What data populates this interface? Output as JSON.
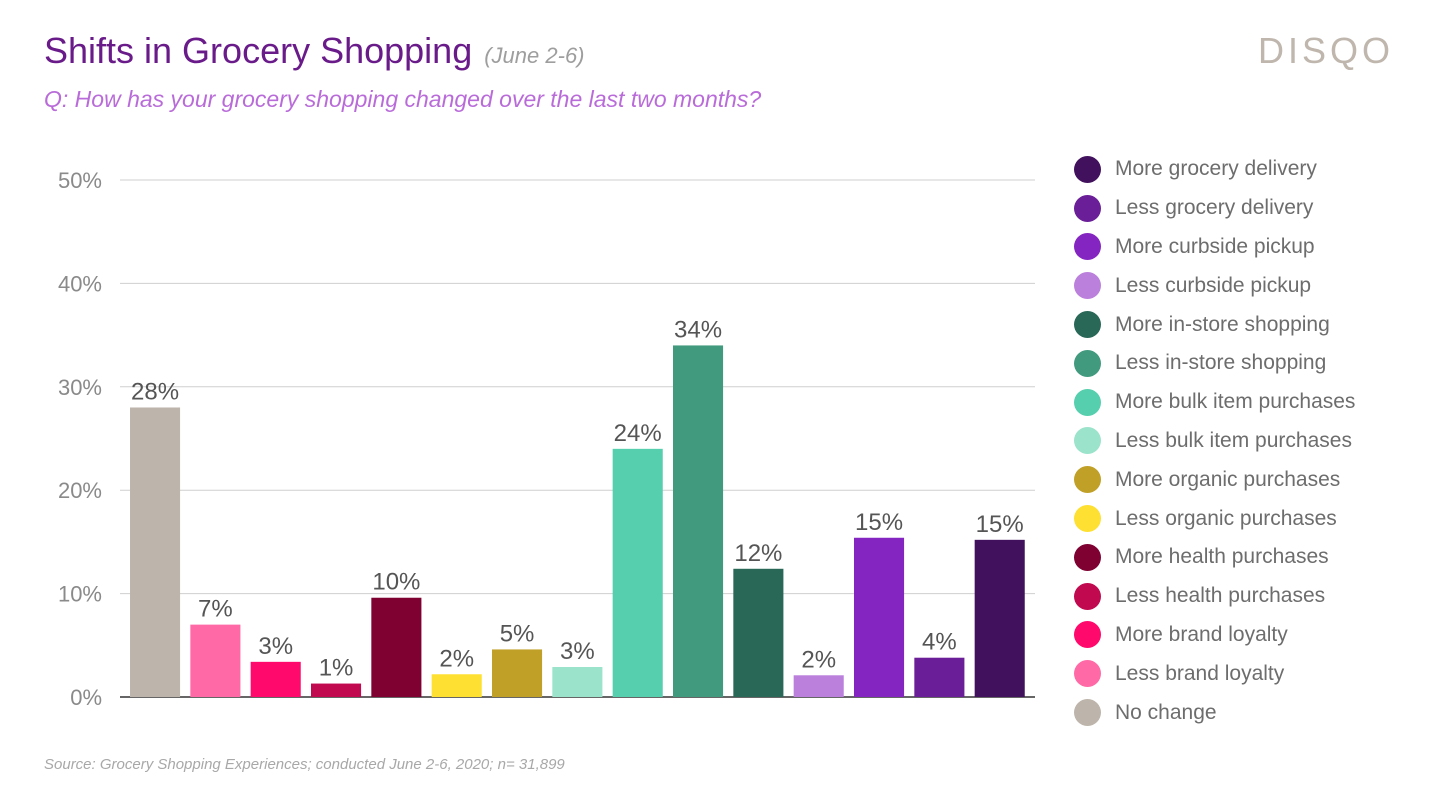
{
  "header": {
    "title": "Shifts in Grocery Shopping",
    "date": "(June 2-6)",
    "question": "Q: How has your grocery shopping changed over the last two months?",
    "logo": "DISQO"
  },
  "footer": {
    "source": "Source: Grocery Shopping Experiences; conducted June 2-6, 2020; n= 31,899"
  },
  "chart_data": {
    "type": "bar",
    "title": "Shifts in Grocery Shopping",
    "xlabel": "",
    "ylabel": "",
    "ylim": [
      0,
      50
    ],
    "yticks": [
      0,
      10,
      20,
      30,
      40,
      50
    ],
    "ytick_labels": [
      "0%",
      "10%",
      "20%",
      "30%",
      "40%",
      "50%"
    ],
    "grid": true,
    "legend_position": "right",
    "bars": [
      {
        "category": "No change",
        "value": 28,
        "label": "28%",
        "color": "#bdb4ab"
      },
      {
        "category": "Less brand loyalty",
        "value": 7,
        "label": "7%",
        "color": "#ff69a6"
      },
      {
        "category": "More brand loyalty",
        "value": 3.4,
        "label": "3%",
        "color": "#ff0a6c"
      },
      {
        "category": "Less health purchases",
        "value": 1.3,
        "label": "1%",
        "color": "#c0094f"
      },
      {
        "category": "More health purchases",
        "value": 9.6,
        "label": "10%",
        "color": "#7e0132"
      },
      {
        "category": "Less organic purchases",
        "value": 2.2,
        "label": "2%",
        "color": "#fde032"
      },
      {
        "category": "More organic purchases",
        "value": 4.6,
        "label": "5%",
        "color": "#c0a026"
      },
      {
        "category": "Less bulk item purchases",
        "value": 2.9,
        "label": "3%",
        "color": "#9be3cb"
      },
      {
        "category": "More bulk item purchases",
        "value": 24,
        "label": "24%",
        "color": "#55cfad"
      },
      {
        "category": "Less in-store shopping",
        "value": 34,
        "label": "34%",
        "color": "#419a7e"
      },
      {
        "category": "More in-store shopping",
        "value": 12.4,
        "label": "12%",
        "color": "#296757"
      },
      {
        "category": "Less curbside pickup",
        "value": 2.1,
        "label": "2%",
        "color": "#bb7fdc"
      },
      {
        "category": "More curbside pickup",
        "value": 15.4,
        "label": "15%",
        "color": "#8525c1"
      },
      {
        "category": "Less grocery delivery",
        "value": 3.8,
        "label": "4%",
        "color": "#6a1e97"
      },
      {
        "category": "More grocery delivery",
        "value": 15.2,
        "label": "15%",
        "color": "#42115d"
      }
    ],
    "legend": [
      {
        "label": "More grocery delivery",
        "color": "#42115d"
      },
      {
        "label": "Less grocery delivery",
        "color": "#6a1e97"
      },
      {
        "label": "More curbside pickup",
        "color": "#8525c1"
      },
      {
        "label": "Less curbside pickup",
        "color": "#bb7fdc"
      },
      {
        "label": "More in-store shopping",
        "color": "#296757"
      },
      {
        "label": "Less in-store shopping",
        "color": "#419a7e"
      },
      {
        "label": "More bulk item purchases",
        "color": "#55cfad"
      },
      {
        "label": "Less bulk item purchases",
        "color": "#9be3cb"
      },
      {
        "label": "More organic purchases",
        "color": "#c0a026"
      },
      {
        "label": "Less organic purchases",
        "color": "#fde032"
      },
      {
        "label": "More health purchases",
        "color": "#7e0132"
      },
      {
        "label": "Less health purchases",
        "color": "#c0094f"
      },
      {
        "label": "More brand loyalty",
        "color": "#ff0a6c"
      },
      {
        "label": "Less brand loyalty",
        "color": "#ff69a6"
      },
      {
        "label": "No change",
        "color": "#bdb4ab"
      }
    ]
  }
}
